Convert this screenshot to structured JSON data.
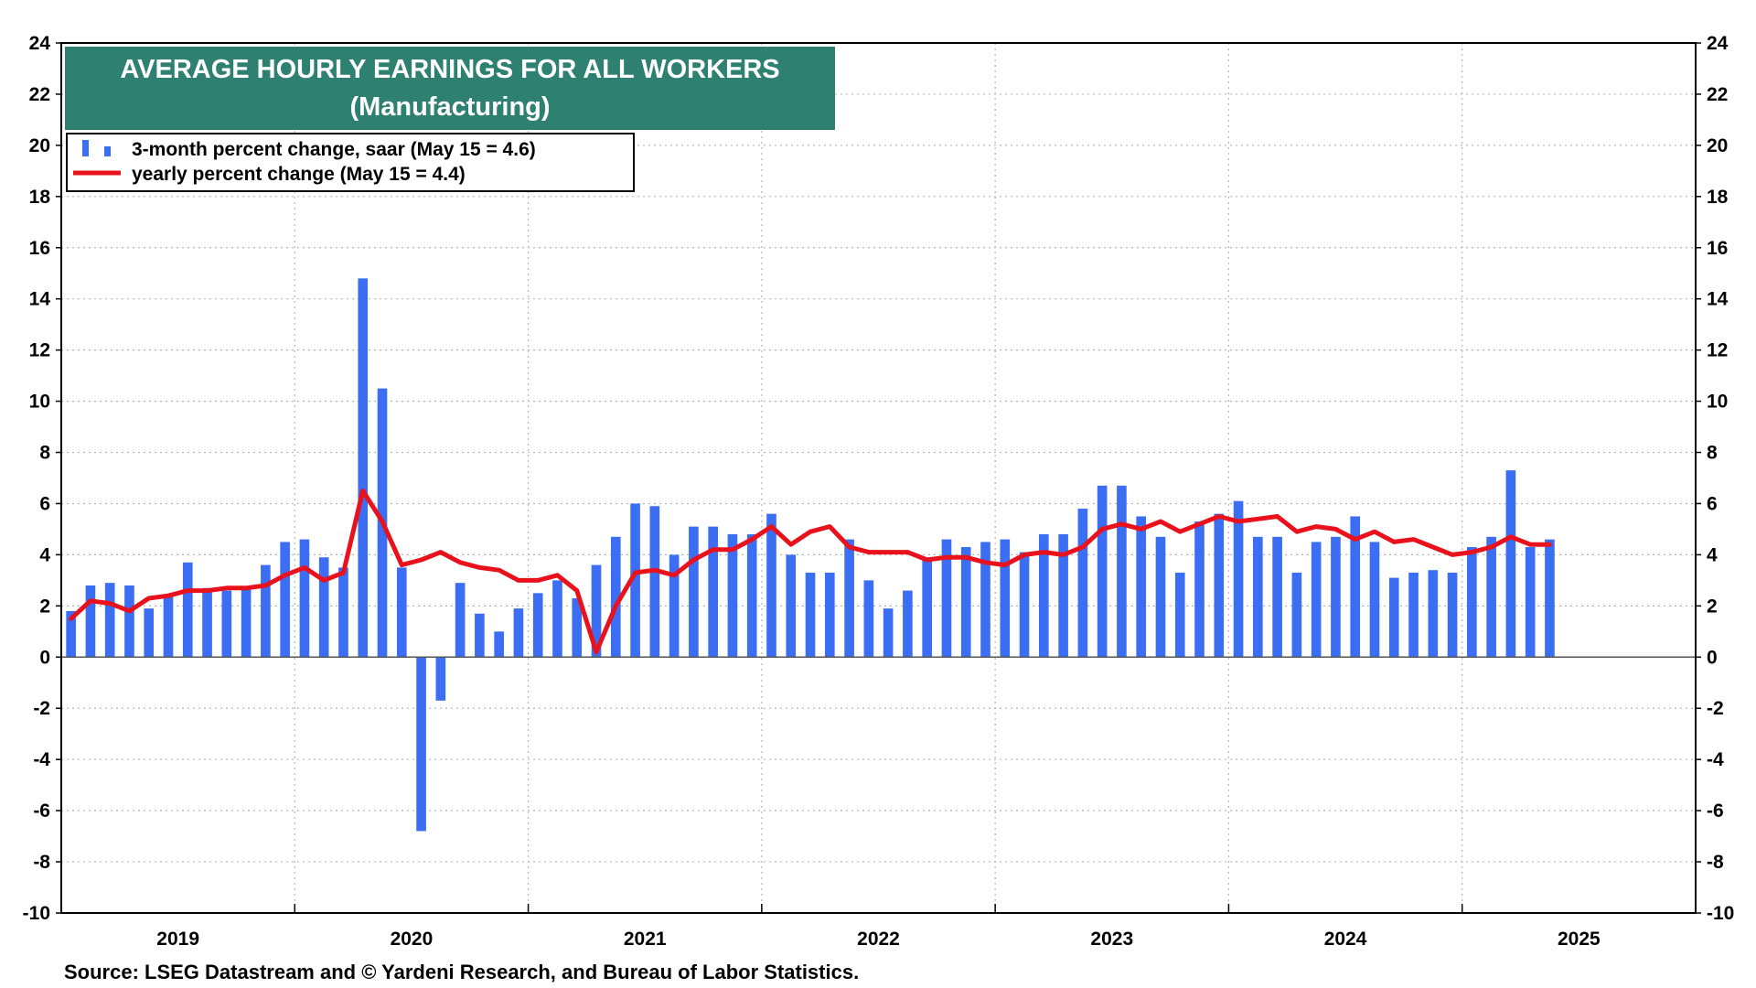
{
  "chart_data": {
    "type": "bar",
    "title": "AVERAGE HOURLY EARNINGS FOR ALL WORKERS",
    "subtitle": "(Manufacturing)",
    "source": "Source: LSEG Datastream and © Yardeni Research, and Bureau of Labor Statistics.",
    "ylim": [
      -10,
      24
    ],
    "y_ticks": [
      -10,
      -8,
      -6,
      -4,
      -2,
      0,
      2,
      4,
      6,
      8,
      10,
      12,
      14,
      16,
      18,
      20,
      22,
      24
    ],
    "x_year_labels": [
      "2019",
      "2020",
      "2021",
      "2022",
      "2023",
      "2024",
      "2025"
    ],
    "x_start": "2019-01",
    "x_end": "2025-12",
    "grid": true,
    "legend_position": "top-left",
    "colors": {
      "bars": "#3b6ef2",
      "line": "#e8111c",
      "title_bg": "#2e8070"
    },
    "series": [
      {
        "name": "3-month percent change, saar (May 15 = 4.6)",
        "kind": "bar",
        "months": [
          "2019-01",
          "2019-02",
          "2019-03",
          "2019-04",
          "2019-05",
          "2019-06",
          "2019-07",
          "2019-08",
          "2019-09",
          "2019-10",
          "2019-11",
          "2019-12",
          "2020-01",
          "2020-02",
          "2020-03",
          "2020-04",
          "2020-05",
          "2020-06",
          "2020-07",
          "2020-08",
          "2020-09",
          "2020-10",
          "2020-11",
          "2020-12",
          "2021-01",
          "2021-02",
          "2021-03",
          "2021-04",
          "2021-05",
          "2021-06",
          "2021-07",
          "2021-08",
          "2021-09",
          "2021-10",
          "2021-11",
          "2021-12",
          "2022-01",
          "2022-02",
          "2022-03",
          "2022-04",
          "2022-05",
          "2022-06",
          "2022-07",
          "2022-08",
          "2022-09",
          "2022-10",
          "2022-11",
          "2022-12",
          "2023-01",
          "2023-02",
          "2023-03",
          "2023-04",
          "2023-05",
          "2023-06",
          "2023-07",
          "2023-08",
          "2023-09",
          "2023-10",
          "2023-11",
          "2023-12",
          "2024-01",
          "2024-02",
          "2024-03",
          "2024-04",
          "2024-05",
          "2024-06",
          "2024-07",
          "2024-08",
          "2024-09",
          "2024-10",
          "2024-11",
          "2024-12",
          "2025-01",
          "2025-02",
          "2025-03",
          "2025-04",
          "2025-05"
        ],
        "values": [
          1.8,
          2.8,
          2.9,
          2.8,
          1.9,
          2.4,
          3.7,
          2.7,
          2.6,
          2.7,
          3.6,
          4.5,
          4.6,
          3.9,
          3.5,
          14.8,
          10.5,
          3.5,
          -6.8,
          -1.7,
          2.9,
          1.7,
          1.0,
          1.9,
          2.5,
          3.0,
          2.3,
          3.6,
          4.7,
          6.0,
          5.9,
          4.0,
          5.1,
          5.1,
          4.8,
          4.8,
          5.6,
          4.0,
          3.3,
          3.3,
          4.6,
          3.0,
          1.9,
          2.6,
          3.9,
          4.6,
          4.3,
          4.5,
          4.6,
          4.1,
          4.8,
          4.8,
          5.8,
          6.7,
          6.7,
          5.5,
          4.7,
          3.3,
          5.3,
          5.6,
          6.1,
          4.7,
          4.7,
          3.3,
          4.5,
          4.7,
          5.5,
          4.5,
          3.1,
          3.3,
          3.4,
          3.3,
          4.3,
          4.7,
          7.3,
          4.3,
          4.6
        ]
      },
      {
        "name": "yearly percent change (May 15 = 4.4)",
        "kind": "line",
        "months": [
          "2019-01",
          "2019-02",
          "2019-03",
          "2019-04",
          "2019-05",
          "2019-06",
          "2019-07",
          "2019-08",
          "2019-09",
          "2019-10",
          "2019-11",
          "2019-12",
          "2020-01",
          "2020-02",
          "2020-03",
          "2020-04",
          "2020-05",
          "2020-06",
          "2020-07",
          "2020-08",
          "2020-09",
          "2020-10",
          "2020-11",
          "2020-12",
          "2021-01",
          "2021-02",
          "2021-03",
          "2021-04",
          "2021-05",
          "2021-06",
          "2021-07",
          "2021-08",
          "2021-09",
          "2021-10",
          "2021-11",
          "2021-12",
          "2022-01",
          "2022-02",
          "2022-03",
          "2022-04",
          "2022-05",
          "2022-06",
          "2022-07",
          "2022-08",
          "2022-09",
          "2022-10",
          "2022-11",
          "2022-12",
          "2023-01",
          "2023-02",
          "2023-03",
          "2023-04",
          "2023-05",
          "2023-06",
          "2023-07",
          "2023-08",
          "2023-09",
          "2023-10",
          "2023-11",
          "2023-12",
          "2024-01",
          "2024-02",
          "2024-03",
          "2024-04",
          "2024-05",
          "2024-06",
          "2024-07",
          "2024-08",
          "2024-09",
          "2024-10",
          "2024-11",
          "2024-12",
          "2025-01",
          "2025-02",
          "2025-03",
          "2025-04",
          "2025-05"
        ],
        "values": [
          1.5,
          2.2,
          2.1,
          1.8,
          2.3,
          2.4,
          2.6,
          2.6,
          2.7,
          2.7,
          2.8,
          3.2,
          3.5,
          3.0,
          3.3,
          6.5,
          5.3,
          3.6,
          3.8,
          4.1,
          3.7,
          3.5,
          3.4,
          3.0,
          3.0,
          3.2,
          2.6,
          0.2,
          2.0,
          3.3,
          3.4,
          3.2,
          3.8,
          4.2,
          4.2,
          4.6,
          5.1,
          4.4,
          4.9,
          5.1,
          4.3,
          4.1,
          4.1,
          4.1,
          3.8,
          3.9,
          3.9,
          3.7,
          3.6,
          4.0,
          4.1,
          4.0,
          4.3,
          5.0,
          5.2,
          5.0,
          5.3,
          4.9,
          5.2,
          5.5,
          5.3,
          5.4,
          5.5,
          4.9,
          5.1,
          5.0,
          4.6,
          4.9,
          4.5,
          4.6,
          4.3,
          4.0,
          4.1,
          4.3,
          4.7,
          4.4,
          4.4
        ]
      }
    ]
  }
}
